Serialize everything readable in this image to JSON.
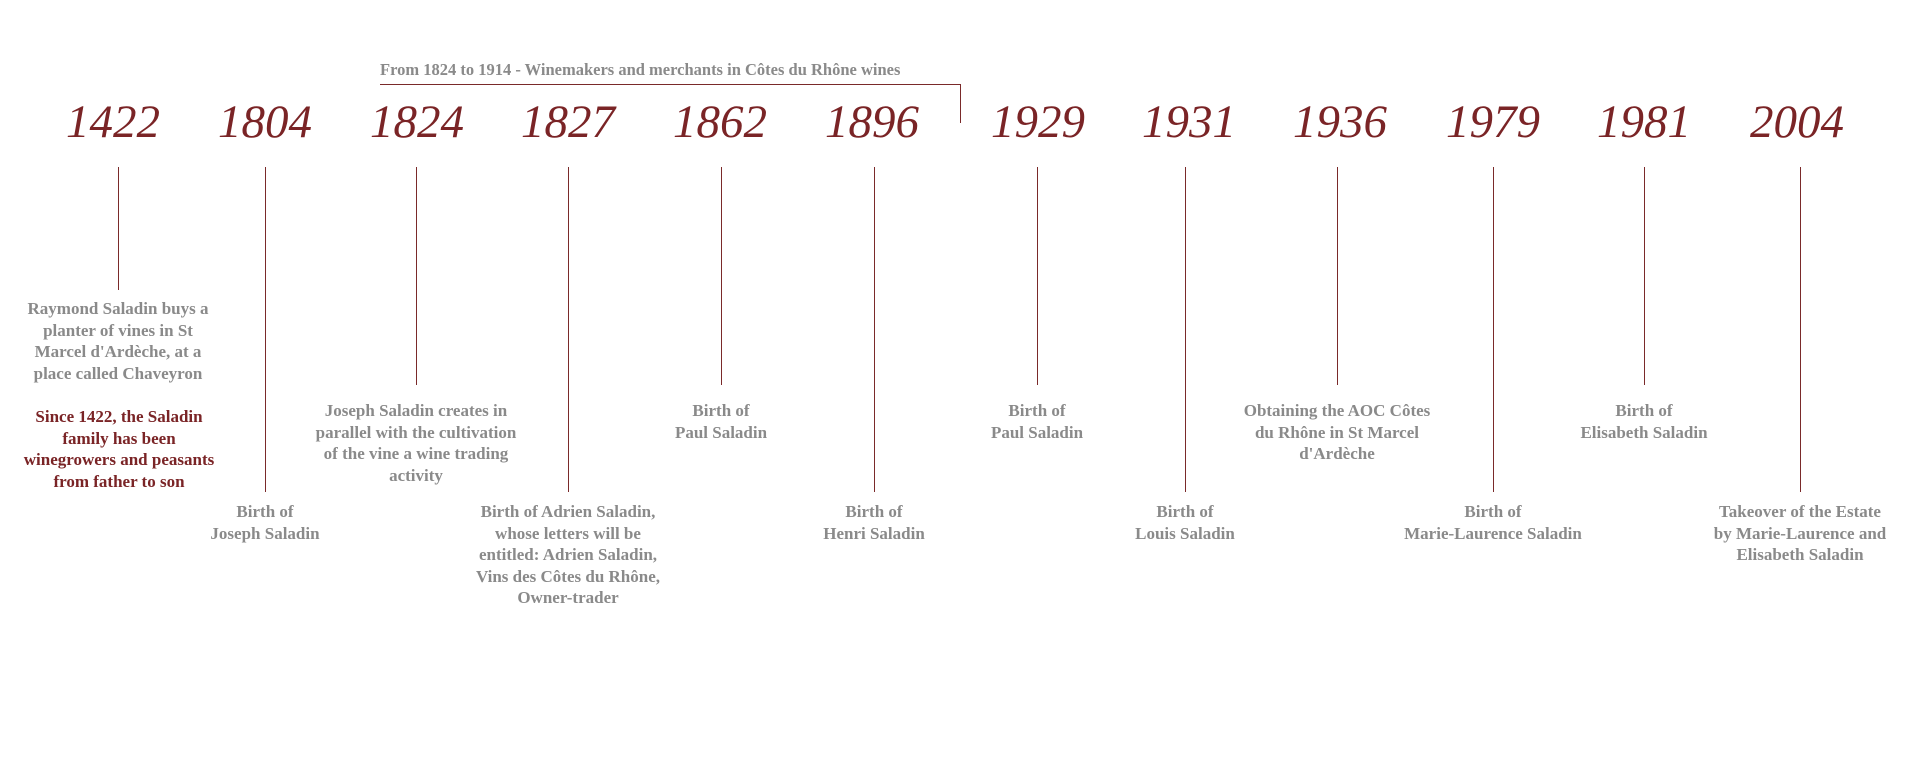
{
  "accent": "#7a2426",
  "text_gray": "#8a8a8a",
  "line_color": "#7a2a2a",
  "period": "From 1824 to 1914 - Winemakers and merchants in Côtes du Rhône wines",
  "events": [
    {
      "year": "1422",
      "text": "Raymond Saladin buys a\nplanter of vines in St\nMarcel d'Ardèche, at a\nplace called Chaveyron",
      "note": "Since 1422, the Saladin\nfamily has been\nwinegrowers and peasants\nfrom father to son"
    },
    {
      "year": "1804",
      "text": "Birth of\nJoseph Saladin"
    },
    {
      "year": "1824",
      "text": "Joseph Saladin creates in\nparallel with the cultivation\nof the vine a wine trading\nactivity"
    },
    {
      "year": "1827",
      "text": "Birth of Adrien Saladin,\nwhose letters will be\nentitled: Adrien Saladin,\nVins des Côtes du Rhône,\nOwner-trader"
    },
    {
      "year": "1862",
      "text": "Birth of\nPaul Saladin"
    },
    {
      "year": "1896",
      "text": "Birth of\nHenri Saladin"
    },
    {
      "year": "1929",
      "text": "Birth of\nPaul Saladin"
    },
    {
      "year": "1931",
      "text": "Birth of\nLouis Saladin"
    },
    {
      "year": "1936",
      "text": "Obtaining the AOC Côtes\ndu Rhône in St Marcel\nd'Ardèche"
    },
    {
      "year": "1979",
      "text": "Birth of\nMarie-Laurence Saladin"
    },
    {
      "year": "1981",
      "text": "Birth of\nElisabeth Saladin"
    },
    {
      "year": "2004",
      "text": "Takeover of the Estate\nby Marie-Laurence and\nElisabeth Saladin"
    }
  ]
}
